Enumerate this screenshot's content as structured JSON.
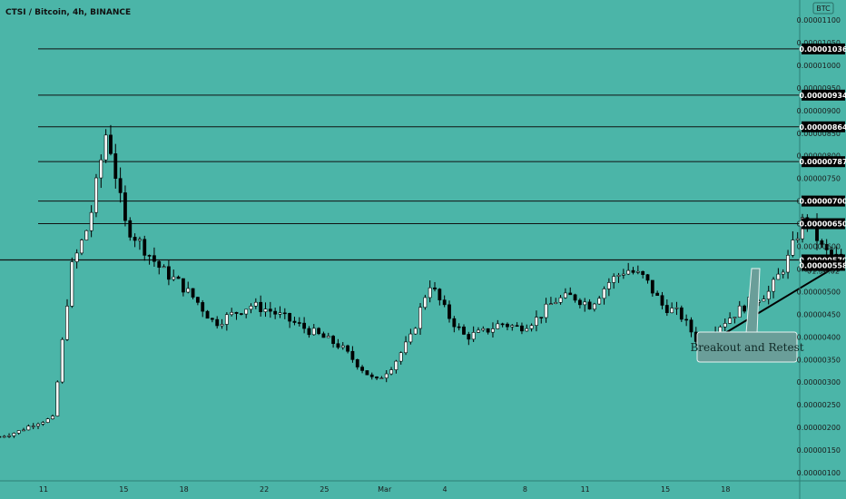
{
  "chart_data": {
    "type": "candlestick",
    "title": "CTSI / Bitcoin, 4h, BINANCE",
    "currency_badge": "BTC",
    "y_axis": {
      "ylim": [
        1e-06,
        1.11e-05
      ],
      "ticks": [
        "0.00001100",
        "0.00001050",
        "0.00001000",
        "0.00000950",
        "0.00000900",
        "0.00000850",
        "0.00000800",
        "0.00000750",
        "0.00000700",
        "0.00000650",
        "0.00000600",
        "0.00000550",
        "0.00000500",
        "0.00000450",
        "0.00000400",
        "0.00000350",
        "0.00000300",
        "0.00000250",
        "0.00000200",
        "0.00000150",
        "0.00000100"
      ],
      "tick_values": [
        1.1e-05,
        1.05e-05,
        1e-05,
        9.5e-06,
        9e-06,
        8.5e-06,
        8e-06,
        7.5e-06,
        7e-06,
        6.5e-06,
        6e-06,
        5.5e-06,
        5e-06,
        4.5e-06,
        4e-06,
        3.5e-06,
        3e-06,
        2.5e-06,
        2e-06,
        1.5e-06,
        1e-06
      ]
    },
    "x_axis": {
      "labels": [
        "11",
        "15",
        "18",
        "22",
        "25",
        "Mar",
        "4",
        "8",
        "11",
        "15",
        "18"
      ],
      "label_positions": [
        0,
        4,
        7,
        11,
        14,
        17,
        20,
        24,
        27,
        31,
        34
      ]
    },
    "price_levels": [
      {
        "label": "0.00001036",
        "value": 1.036e-05
      },
      {
        "label": "0.00000934",
        "value": 9.34e-06
      },
      {
        "label": "0.00000864",
        "value": 8.64e-06
      },
      {
        "label": "0.00000787",
        "value": 7.87e-06
      },
      {
        "label": "0.00000700",
        "value": 7e-06
      },
      {
        "label": "0.00000650",
        "value": 6.5e-06
      }
    ],
    "current_price": {
      "label": "0.00000570",
      "value": 5.7e-06,
      "countdown": "01:54:02"
    },
    "support_level": {
      "label": "0.00000558",
      "value": 5.58e-06
    },
    "trendline": [
      {
        "day": 33.1,
        "value": 3.85e-06
      },
      {
        "day": 39.6,
        "value": 5.58e-06
      }
    ],
    "annotation": {
      "text": "Breakout and Retest"
    },
    "closes": [
      1.8e-06,
      1.9e-06,
      2.1e-06,
      2.2e-06,
      5.5e-06,
      6.5e-06,
      8.6e-06,
      6.5e-06,
      6e-06,
      5.5e-06,
      5.2e-06,
      4.8e-06,
      4.3e-06,
      4.5e-06,
      4.7e-06,
      4.6e-06,
      4.4e-06,
      4.2e-06,
      4e-06,
      3.8e-06,
      3.4e-06,
      3e-06,
      3.4e-06,
      4e-06,
      5.2e-06,
      4.5e-06,
      4e-06,
      4.1e-06,
      4.3e-06,
      4.2e-06,
      4.4e-06,
      4.8e-06,
      4.9e-06,
      4.7e-06,
      5.2e-06,
      5.5e-06,
      5.3e-06,
      4.7e-06,
      4.5e-06,
      3.9e-06,
      4.2e-06,
      4.5e-06,
      4.8e-06,
      5e-06,
      5.7e-06,
      6.7e-06,
      5.9e-06,
      5.7e-06
    ]
  }
}
